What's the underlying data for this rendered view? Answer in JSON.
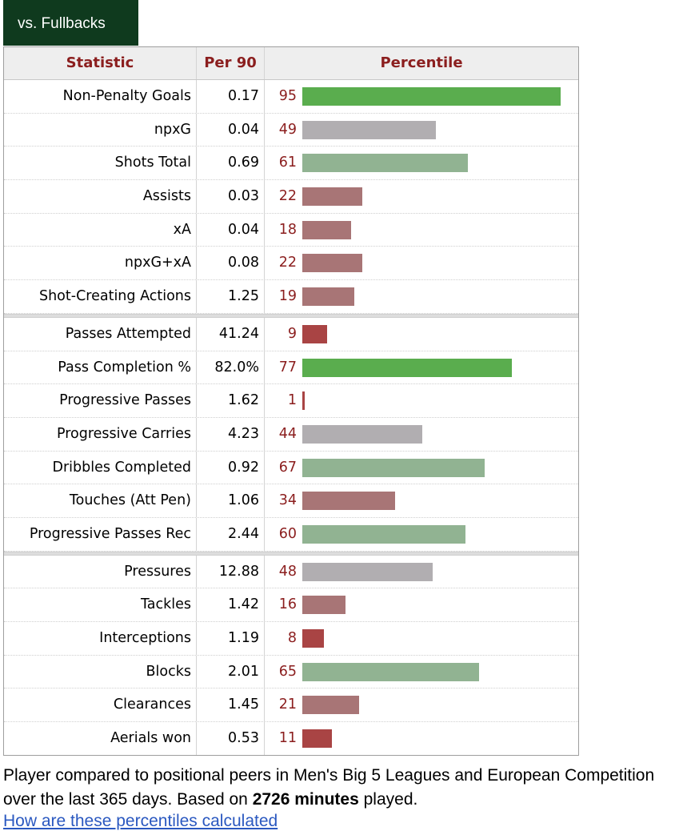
{
  "tab": {
    "label": "vs. Fullbacks"
  },
  "chart_data": {
    "type": "bar",
    "columns": [
      "Statistic",
      "Per 90",
      "Percentile"
    ],
    "xlim": [
      0,
      100
    ],
    "colors": {
      "high": "#5aad4e",
      "above_avg": "#91b392",
      "avg": "#b1aeb1",
      "below_avg": "#a87576",
      "low": "#a94444"
    },
    "groups": [
      [
        {
          "stat": "Non-Penalty Goals",
          "per90": "0.17",
          "pct": 95
        },
        {
          "stat": "npxG",
          "per90": "0.04",
          "pct": 49
        },
        {
          "stat": "Shots Total",
          "per90": "0.69",
          "pct": 61
        },
        {
          "stat": "Assists",
          "per90": "0.03",
          "pct": 22
        },
        {
          "stat": "xA",
          "per90": "0.04",
          "pct": 18
        },
        {
          "stat": "npxG+xA",
          "per90": "0.08",
          "pct": 22
        },
        {
          "stat": "Shot-Creating Actions",
          "per90": "1.25",
          "pct": 19
        }
      ],
      [
        {
          "stat": "Passes Attempted",
          "per90": "41.24",
          "pct": 9
        },
        {
          "stat": "Pass Completion %",
          "per90": "82.0%",
          "pct": 77
        },
        {
          "stat": "Progressive Passes",
          "per90": "1.62",
          "pct": 1
        },
        {
          "stat": "Progressive Carries",
          "per90": "4.23",
          "pct": 44
        },
        {
          "stat": "Dribbles Completed",
          "per90": "0.92",
          "pct": 67
        },
        {
          "stat": "Touches (Att Pen)",
          "per90": "1.06",
          "pct": 34
        },
        {
          "stat": "Progressive Passes Rec",
          "per90": "2.44",
          "pct": 60
        }
      ],
      [
        {
          "stat": "Pressures",
          "per90": "12.88",
          "pct": 48
        },
        {
          "stat": "Tackles",
          "per90": "1.42",
          "pct": 16
        },
        {
          "stat": "Interceptions",
          "per90": "1.19",
          "pct": 8
        },
        {
          "stat": "Blocks",
          "per90": "2.01",
          "pct": 65
        },
        {
          "stat": "Clearances",
          "per90": "1.45",
          "pct": 21
        },
        {
          "stat": "Aerials won",
          "per90": "0.53",
          "pct": 11
        }
      ]
    ]
  },
  "footer": {
    "text_before": "Player compared to positional peers in Men's Big 5 Leagues and European Competition over the last 365 days. Based on ",
    "minutes": "2726 minutes",
    "text_after": " played.",
    "link": "How are these percentiles calculated"
  }
}
